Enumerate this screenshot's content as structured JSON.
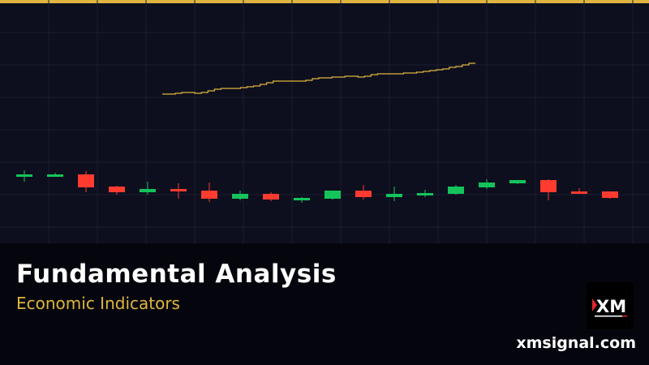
{
  "banner": {
    "title": "Fundamental Analysis",
    "subtitle": "Economic Indicators",
    "site": "xmsignal.com",
    "logo_text": "XM"
  },
  "colors": {
    "accent": "#e0b53f",
    "up": "#14c45a",
    "down": "#ff3b30",
    "grid": "#1b1e33"
  },
  "chart_data": {
    "type": "candlestick",
    "candles": [
      {
        "o": 82,
        "h": 90,
        "l": 76,
        "c": 85
      },
      {
        "o": 82,
        "h": 87,
        "l": 82,
        "c": 85
      },
      {
        "o": 85,
        "h": 89,
        "l": 63,
        "c": 69
      },
      {
        "o": 70,
        "h": 71,
        "l": 60,
        "c": 63
      },
      {
        "o": 63,
        "h": 76,
        "l": 60,
        "c": 67
      },
      {
        "o": 67,
        "h": 74,
        "l": 55,
        "c": 64
      },
      {
        "o": 65,
        "h": 75,
        "l": 51,
        "c": 55
      },
      {
        "o": 55,
        "h": 65,
        "l": 53,
        "c": 61
      },
      {
        "o": 61,
        "h": 63,
        "l": 52,
        "c": 54
      },
      {
        "o": 53,
        "h": 57,
        "l": 50,
        "c": 56
      },
      {
        "o": 55,
        "h": 65,
        "l": 54,
        "c": 65
      },
      {
        "o": 65,
        "h": 72,
        "l": 54,
        "c": 57
      },
      {
        "o": 57,
        "h": 70,
        "l": 52,
        "c": 61
      },
      {
        "o": 59,
        "h": 66,
        "l": 57,
        "c": 62
      },
      {
        "o": 61,
        "h": 72,
        "l": 60,
        "c": 70
      },
      {
        "o": 69,
        "h": 79,
        "l": 67,
        "c": 75
      },
      {
        "o": 74,
        "h": 78,
        "l": 73,
        "c": 78
      },
      {
        "o": 78,
        "h": 79,
        "l": 53,
        "c": 63
      },
      {
        "o": 64,
        "h": 68,
        "l": 61,
        "c": 61
      },
      {
        "o": 64,
        "h": 64,
        "l": 55,
        "c": 56
      }
    ],
    "line": [
      184,
      184,
      185,
      186,
      186,
      185,
      186,
      188,
      190,
      191,
      191,
      191,
      192,
      193,
      194,
      196,
      198,
      200,
      200,
      200,
      200,
      200,
      201,
      203,
      204,
      204,
      205,
      205,
      206,
      206,
      205,
      206,
      208,
      209,
      209,
      209,
      209,
      210,
      210,
      211,
      212,
      213,
      214,
      215,
      217,
      218,
      220,
      222,
      222
    ]
  }
}
